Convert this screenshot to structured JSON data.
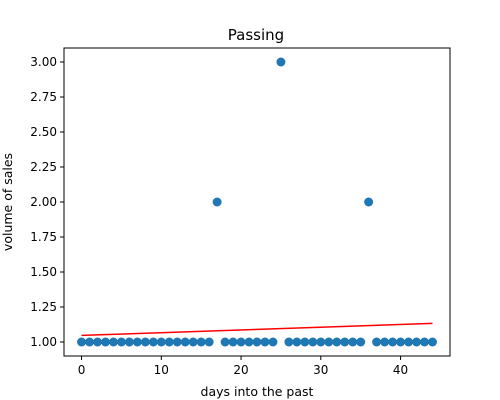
{
  "chart_data": {
    "type": "scatter",
    "title": "Passing",
    "xlabel": "days into the past",
    "ylabel": "volume of sales",
    "xlim": [
      -2.2,
      46.2
    ],
    "ylim": [
      0.9,
      3.1
    ],
    "xticks": [
      0,
      10,
      20,
      30,
      40
    ],
    "xtick_labels": [
      "0",
      "10",
      "20",
      "30",
      "40"
    ],
    "yticks": [
      1.0,
      1.25,
      1.5,
      1.75,
      2.0,
      2.25,
      2.5,
      2.75,
      3.0
    ],
    "ytick_labels": [
      "1.00",
      "1.25",
      "1.50",
      "1.75",
      "2.00",
      "2.25",
      "2.50",
      "2.75",
      "3.00"
    ],
    "grid": false,
    "series": [
      {
        "type": "scatter",
        "color": "#1f77b4",
        "x": [
          0,
          1,
          2,
          3,
          4,
          5,
          6,
          7,
          8,
          9,
          10,
          11,
          12,
          13,
          14,
          15,
          16,
          17,
          18,
          19,
          20,
          21,
          22,
          23,
          24,
          25,
          26,
          27,
          28,
          29,
          30,
          31,
          32,
          33,
          34,
          35,
          36,
          37,
          38,
          39,
          40,
          41,
          42,
          43,
          44
        ],
        "y": [
          1,
          1,
          1,
          1,
          1,
          1,
          1,
          1,
          1,
          1,
          1,
          1,
          1,
          1,
          1,
          1,
          1,
          2,
          1,
          1,
          1,
          1,
          1,
          1,
          1,
          3,
          1,
          1,
          1,
          1,
          1,
          1,
          1,
          1,
          1,
          1,
          2,
          1,
          1,
          1,
          1,
          1,
          1,
          1,
          1
        ]
      },
      {
        "type": "line",
        "color": "#ff0000",
        "x": [
          0,
          44
        ],
        "y": [
          1.047,
          1.133
        ]
      }
    ]
  }
}
